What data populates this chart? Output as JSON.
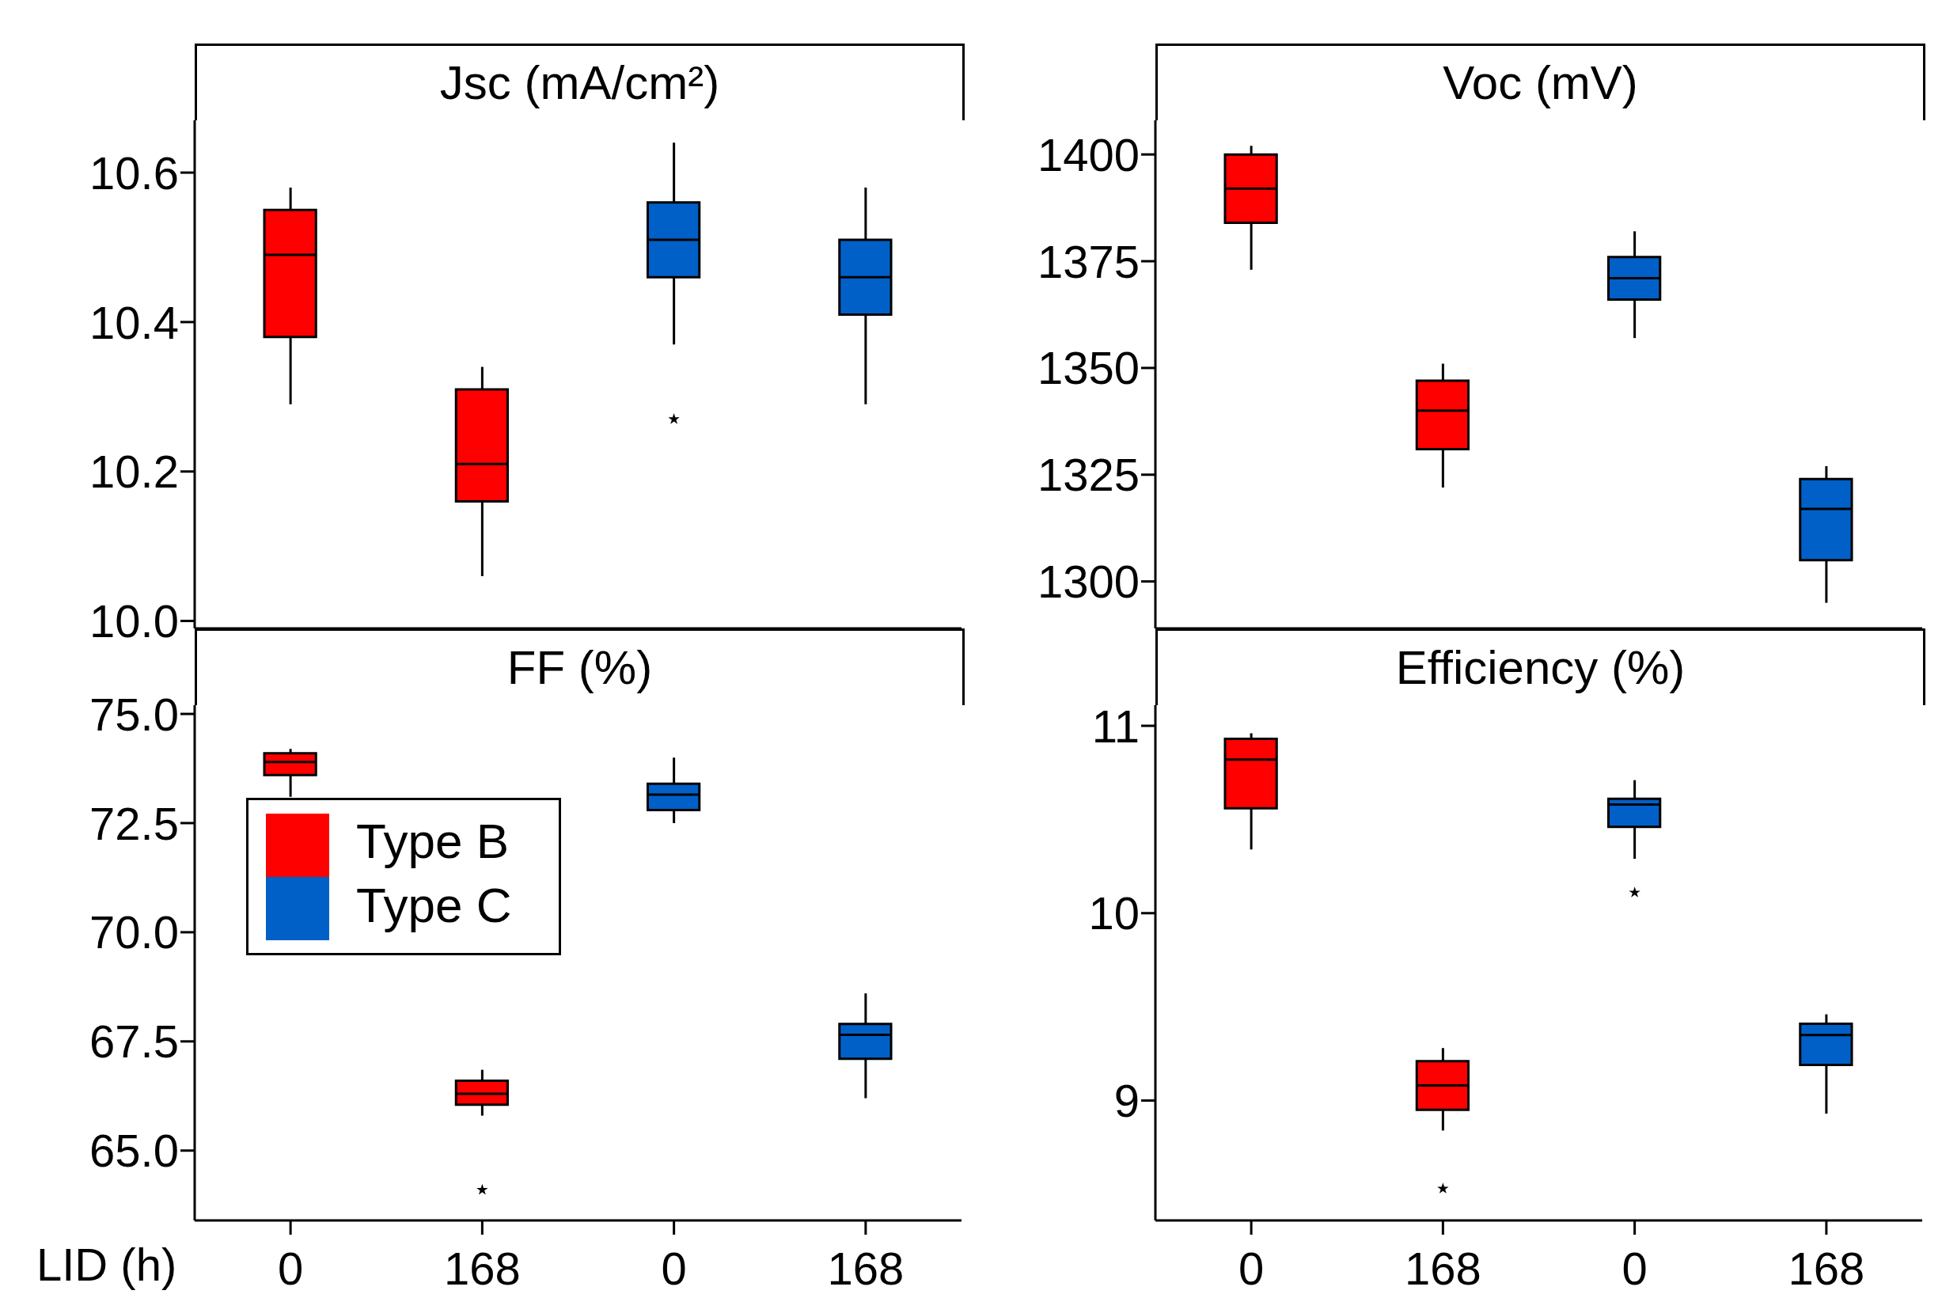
{
  "chart_data": [
    {
      "type": "box",
      "title": "Jsc (mA/cm²)",
      "categories": [
        "0",
        "168",
        "0",
        "168"
      ],
      "ylim": [
        9.99,
        10.67
      ],
      "yticks": [
        {
          "value": 10.0,
          "label": "10.0"
        },
        10.2,
        10.4,
        10.6
      ],
      "tick_labels": "y",
      "grid": false,
      "series": [
        {
          "color": "#ff0000",
          "boxes": [
            {
              "low": 10.29,
              "q1": 10.38,
              "median": 10.49,
              "q3": 10.55,
              "high": 10.58
            },
            {
              "low": 10.06,
              "q1": 10.16,
              "median": 10.21,
              "q3": 10.31,
              "high": 10.34
            },
            null,
            null
          ]
        },
        {
          "color": "#0060c8",
          "boxes": [
            null,
            null,
            {
              "low": 10.37,
              "q1": 10.46,
              "median": 10.51,
              "q3": 10.56,
              "high": 10.64,
              "outliers": [
                10.27
              ]
            },
            {
              "low": 10.29,
              "q1": 10.41,
              "median": 10.46,
              "q3": 10.51,
              "high": 10.58
            }
          ]
        }
      ]
    },
    {
      "type": "box",
      "title": "Voc (mV)",
      "categories": [
        "0",
        "168",
        "0",
        "168"
      ],
      "ylim": [
        1289,
        1408
      ],
      "yticks": [
        1300,
        1325,
        1350,
        1375,
        1400
      ],
      "tick_labels": "y",
      "grid": false,
      "series": [
        {
          "color": "#ff0000",
          "boxes": [
            {
              "low": 1373,
              "q1": 1384,
              "median": 1392,
              "q3": 1400,
              "high": 1402
            },
            {
              "low": 1322,
              "q1": 1331,
              "median": 1340,
              "q3": 1347,
              "high": 1351
            },
            null,
            null
          ]
        },
        {
          "color": "#0060c8",
          "boxes": [
            null,
            null,
            {
              "low": 1357,
              "q1": 1366,
              "median": 1371,
              "q3": 1376,
              "high": 1382
            },
            {
              "low": 1295,
              "q1": 1305,
              "median": 1317,
              "q3": 1324,
              "high": 1327
            }
          ]
        }
      ]
    },
    {
      "type": "box",
      "title": "FF (%)",
      "xlabel": "LID (h)",
      "categories": [
        "0",
        "168",
        "0",
        "168"
      ],
      "ylim": [
        63.4,
        75.2
      ],
      "yticks": [
        {
          "value": 65,
          "label": "65.0"
        },
        67.5,
        {
          "value": 70,
          "label": "70.0"
        },
        72.5,
        {
          "value": 75,
          "label": "75.0"
        }
      ],
      "grid": false,
      "legend": "left",
      "series": [
        {
          "name": "Type B",
          "color": "#ff0000",
          "boxes": [
            {
              "low": 73.1,
              "q1": 73.6,
              "median": 73.9,
              "q3": 74.1,
              "high": 74.2
            },
            {
              "low": 65.8,
              "q1": 66.05,
              "median": 66.3,
              "q3": 66.6,
              "high": 66.85,
              "outliers": [
                64.1
              ]
            },
            null,
            null
          ]
        },
        {
          "name": "Type C",
          "color": "#0060c8",
          "boxes": [
            null,
            null,
            {
              "low": 72.5,
              "q1": 72.8,
              "median": 73.15,
              "q3": 73.4,
              "high": 74.0
            },
            {
              "low": 66.2,
              "q1": 67.1,
              "median": 67.65,
              "q3": 67.9,
              "high": 68.6
            }
          ]
        }
      ]
    },
    {
      "type": "box",
      "title": "Efficiency (%)",
      "categories": [
        "0",
        "168",
        "0",
        "168"
      ],
      "ylim": [
        8.36,
        11.11
      ],
      "yticks": [
        9,
        10,
        11
      ],
      "grid": false,
      "series": [
        {
          "color": "#ff0000",
          "boxes": [
            {
              "low": 10.34,
              "q1": 10.56,
              "median": 10.82,
              "q3": 10.93,
              "high": 10.96
            },
            {
              "low": 8.84,
              "q1": 8.95,
              "median": 9.08,
              "q3": 9.21,
              "high": 9.28,
              "outliers": [
                8.53
              ]
            },
            null,
            null
          ]
        },
        {
          "color": "#0060c8",
          "boxes": [
            null,
            null,
            {
              "low": 10.29,
              "q1": 10.46,
              "median": 10.58,
              "q3": 10.61,
              "high": 10.71,
              "outliers": [
                10.11
              ]
            },
            {
              "low": 8.93,
              "q1": 9.19,
              "median": 9.35,
              "q3": 9.41,
              "high": 9.46
            }
          ]
        }
      ]
    }
  ]
}
